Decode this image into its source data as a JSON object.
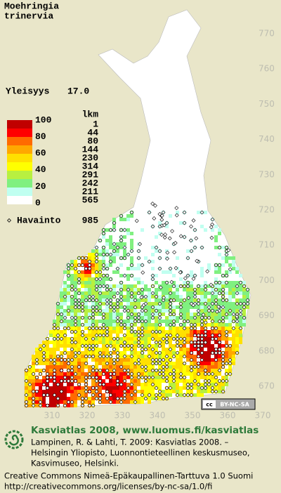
{
  "title": [
    "Moehringia",
    "trinervia"
  ],
  "frequency": {
    "label": "Yleisyys",
    "value": "17.0"
  },
  "legend": {
    "count_header": "lkm",
    "scale": [
      100,
      80,
      60,
      40,
      20,
      0
    ],
    "rows": [
      {
        "color": "#c00000",
        "count": 1
      },
      {
        "color": "#ff0000",
        "count": 44
      },
      {
        "color": "#ff6a00",
        "count": 80
      },
      {
        "color": "#ffa800",
        "count": 144
      },
      {
        "color": "#ffe000",
        "count": 230
      },
      {
        "color": "#ffff00",
        "count": 314
      },
      {
        "color": "#b8f040",
        "count": 291
      },
      {
        "color": "#80f080",
        "count": 242
      },
      {
        "color": "#c0fff0",
        "count": 211
      },
      {
        "color": "#ffffff",
        "count": 565
      }
    ]
  },
  "observations": {
    "symbol": "◇",
    "label": "Havainto",
    "value": 985
  },
  "grid": {
    "north": [
      770,
      760,
      750,
      740,
      730,
      720,
      710,
      700,
      690,
      680,
      670
    ],
    "east": [
      310,
      320,
      330,
      340,
      350,
      360,
      370
    ]
  },
  "license_badge": {
    "cc": "cc",
    "text": "BY-NC-SA"
  },
  "footer": {
    "heading": "Kasviatlas 2008, www.luomus.fi/kasviatlas",
    "lines": [
      "Lampinen, R. & Lahti, T. 2009: Kasviatlas 2008. –",
      "Helsingin Yliopisto, Luonnontieteellinen keskusmuseo,",
      "Kasvimuseo, Helsinki."
    ],
    "license": [
      "Creative Commons Nimeä-Epäkaupallinen-Tarttuva 1.0 Suomi",
      "http://creativecommons.org/licenses/by-nc-sa/1.0/fi"
    ]
  }
}
